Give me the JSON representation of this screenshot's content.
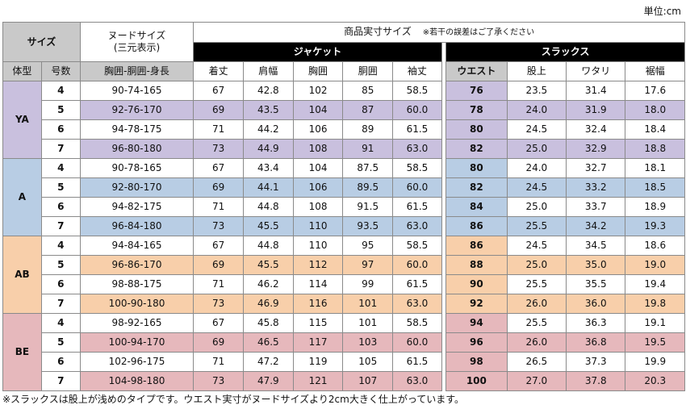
{
  "unit_label": "単位:cm",
  "header": {
    "size": "サイズ",
    "nude_line1": "ヌードサイズ",
    "nude_line2": "(三元表示)",
    "product_title": "商品実寸サイズ",
    "product_note": "※若干の誤差はご了承ください",
    "jacket": "ジャケット",
    "slacks": "スラックス",
    "body_type": "体型",
    "number": "号数",
    "nude_cols": "胸囲-胴囲-身長",
    "jacket_cols": [
      "着丈",
      "肩幅",
      "胸囲",
      "胴囲",
      "袖丈"
    ],
    "slacks_cols": [
      "ウエスト",
      "股上",
      "ワタリ",
      "裾幅"
    ]
  },
  "colors": {
    "YA": "#c9c0de",
    "A": "#b8cde4",
    "AB": "#f8cfaa",
    "BE": "#e6b8bc",
    "header_gray": "#c9c9c9",
    "header_black": "#000000"
  },
  "groups": [
    {
      "type": "YA",
      "rows": [
        {
          "no": "4",
          "nude": "90-74-165",
          "jacket": [
            "67",
            "42.8",
            "102",
            "85",
            "58.5"
          ],
          "slacks": [
            "76",
            "23.5",
            "31.4",
            "17.6"
          ]
        },
        {
          "no": "5",
          "nude": "92-76-170",
          "jacket": [
            "69",
            "43.5",
            "104",
            "87",
            "60.0"
          ],
          "slacks": [
            "78",
            "24.0",
            "31.9",
            "18.0"
          ]
        },
        {
          "no": "6",
          "nude": "94-78-175",
          "jacket": [
            "71",
            "44.2",
            "106",
            "89",
            "61.5"
          ],
          "slacks": [
            "80",
            "24.5",
            "32.4",
            "18.4"
          ]
        },
        {
          "no": "7",
          "nude": "96-80-180",
          "jacket": [
            "73",
            "44.9",
            "108",
            "91",
            "63.0"
          ],
          "slacks": [
            "82",
            "25.0",
            "32.9",
            "18.8"
          ]
        }
      ]
    },
    {
      "type": "A",
      "rows": [
        {
          "no": "4",
          "nude": "90-78-165",
          "jacket": [
            "67",
            "43.4",
            "104",
            "87.5",
            "58.5"
          ],
          "slacks": [
            "80",
            "24.0",
            "32.7",
            "18.1"
          ]
        },
        {
          "no": "5",
          "nude": "92-80-170",
          "jacket": [
            "69",
            "44.1",
            "106",
            "89.5",
            "60.0"
          ],
          "slacks": [
            "82",
            "24.5",
            "33.2",
            "18.5"
          ]
        },
        {
          "no": "6",
          "nude": "94-82-175",
          "jacket": [
            "71",
            "44.8",
            "108",
            "91.5",
            "61.5"
          ],
          "slacks": [
            "84",
            "25.0",
            "33.7",
            "18.9"
          ]
        },
        {
          "no": "7",
          "nude": "96-84-180",
          "jacket": [
            "73",
            "45.5",
            "110",
            "93.5",
            "63.0"
          ],
          "slacks": [
            "86",
            "25.5",
            "34.2",
            "19.3"
          ]
        }
      ]
    },
    {
      "type": "AB",
      "rows": [
        {
          "no": "4",
          "nude": "94-84-165",
          "jacket": [
            "67",
            "44.8",
            "110",
            "95",
            "58.5"
          ],
          "slacks": [
            "86",
            "24.5",
            "34.5",
            "18.6"
          ]
        },
        {
          "no": "5",
          "nude": "96-86-170",
          "jacket": [
            "69",
            "45.5",
            "112",
            "97",
            "60.0"
          ],
          "slacks": [
            "88",
            "25.0",
            "35.0",
            "19.0"
          ]
        },
        {
          "no": "6",
          "nude": "98-88-175",
          "jacket": [
            "71",
            "46.2",
            "114",
            "99",
            "61.5"
          ],
          "slacks": [
            "90",
            "25.5",
            "35.5",
            "19.4"
          ]
        },
        {
          "no": "7",
          "nude": "100-90-180",
          "jacket": [
            "73",
            "46.9",
            "116",
            "101",
            "63.0"
          ],
          "slacks": [
            "92",
            "26.0",
            "36.0",
            "19.8"
          ]
        }
      ]
    },
    {
      "type": "BE",
      "rows": [
        {
          "no": "4",
          "nude": "98-92-165",
          "jacket": [
            "67",
            "45.8",
            "115",
            "101",
            "58.5"
          ],
          "slacks": [
            "94",
            "25.5",
            "36.3",
            "19.1"
          ]
        },
        {
          "no": "5",
          "nude": "100-94-170",
          "jacket": [
            "69",
            "46.5",
            "117",
            "103",
            "60.0"
          ],
          "slacks": [
            "96",
            "26.0",
            "36.8",
            "19.5"
          ]
        },
        {
          "no": "6",
          "nude": "102-96-175",
          "jacket": [
            "71",
            "47.2",
            "119",
            "105",
            "61.5"
          ],
          "slacks": [
            "98",
            "26.5",
            "37.3",
            "19.9"
          ]
        },
        {
          "no": "7",
          "nude": "104-98-180",
          "jacket": [
            "73",
            "47.9",
            "121",
            "107",
            "63.0"
          ],
          "slacks": [
            "100",
            "27.0",
            "37.8",
            "20.3"
          ]
        }
      ]
    }
  ],
  "footnote": "※スラックスは股上が浅めのタイプです。ウエスト実寸がヌードサイズより2cm大きく仕上がっています。"
}
